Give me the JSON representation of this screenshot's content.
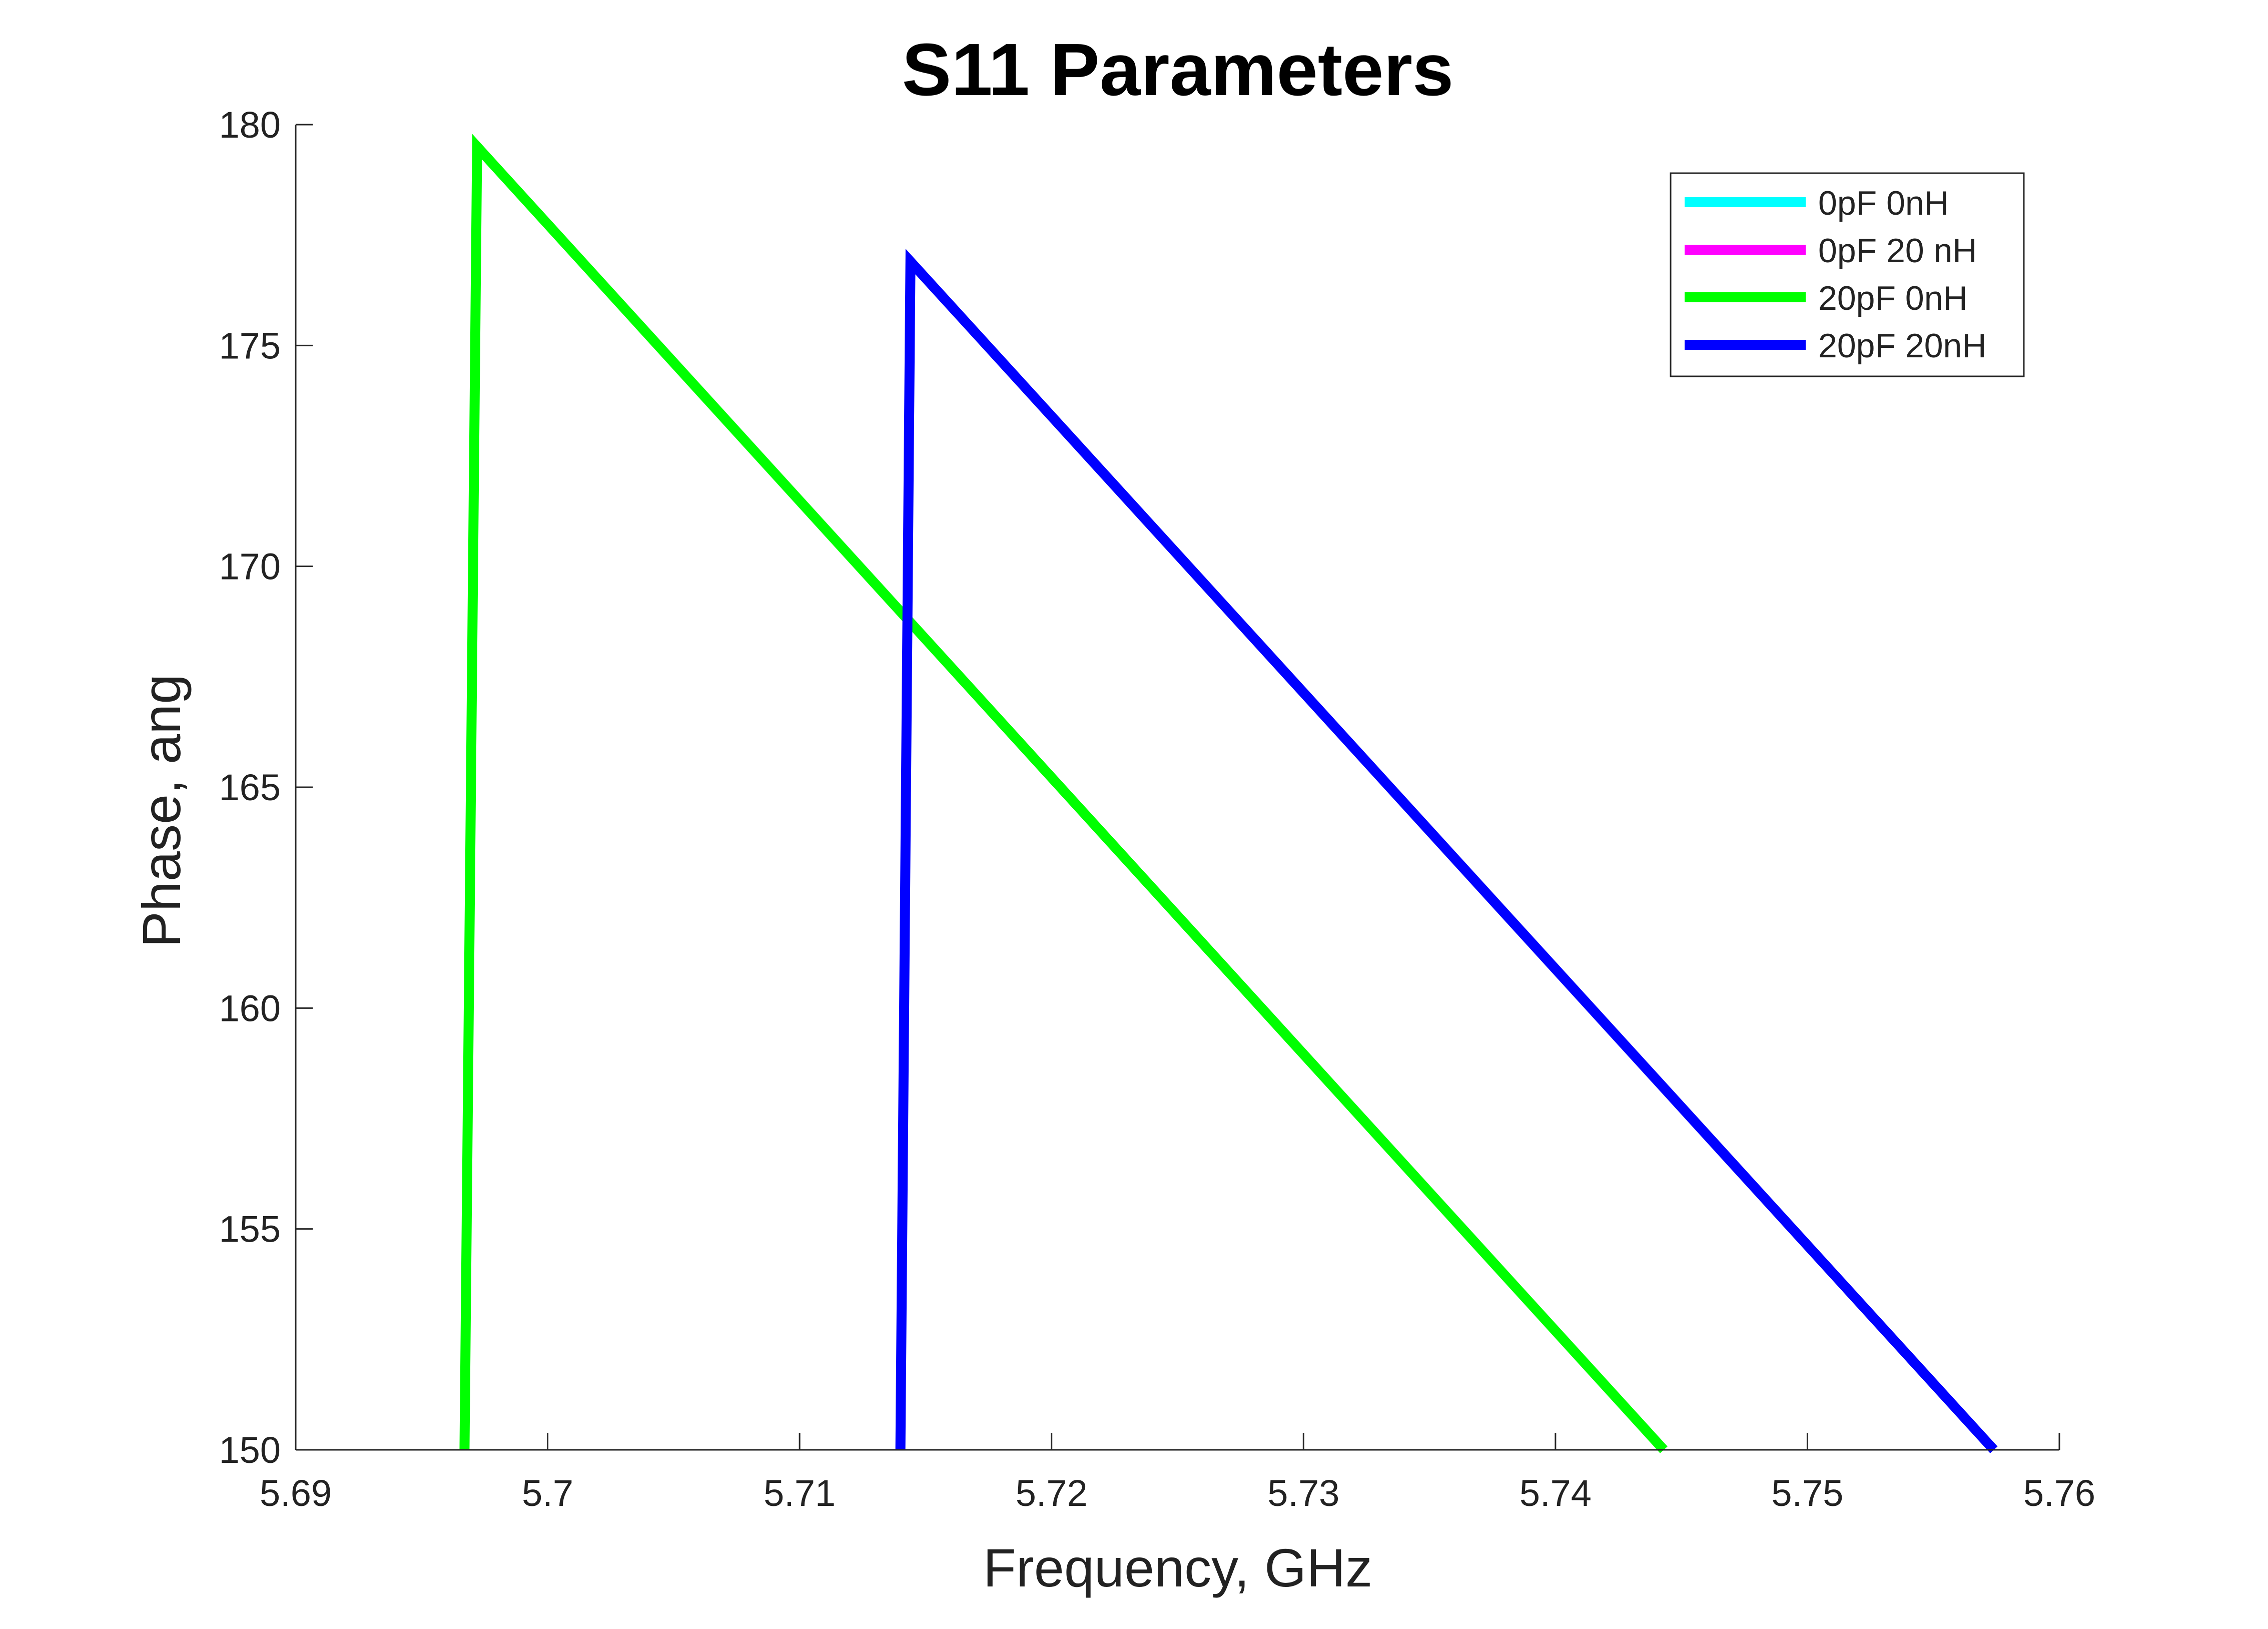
{
  "chart_data": {
    "type": "line",
    "title": "S11 Parameters",
    "xlabel": "Frequency, GHz",
    "ylabel": "Phase, ang",
    "xlim": [
      5.69,
      5.76
    ],
    "ylim": [
      150,
      180
    ],
    "xticks": [
      5.69,
      5.7,
      5.71,
      5.72,
      5.73,
      5.74,
      5.75,
      5.76
    ],
    "xtick_labels": [
      "5.69",
      "5.7",
      "5.71",
      "5.72",
      "5.73",
      "5.74",
      "5.75",
      "5.76"
    ],
    "yticks": [
      150,
      155,
      160,
      165,
      170,
      175,
      180
    ],
    "ytick_labels": [
      "150",
      "155",
      "160",
      "165",
      "170",
      "175",
      "180"
    ],
    "grid": false,
    "legend_position": "top-right",
    "series": [
      {
        "name": "0pF 0nH",
        "color": "#00FFFF",
        "x": [],
        "y": []
      },
      {
        "name": "0pF 20 nH",
        "color": "#FF00FF",
        "x": [],
        "y": []
      },
      {
        "name": "20pF 0nH",
        "color": "#00FF00",
        "x": [
          5.6967,
          5.6972,
          5.7443
        ],
        "y": [
          150,
          179.5,
          150
        ]
      },
      {
        "name": "20pF 20nH",
        "color": "#0000FF",
        "x": [
          5.714,
          5.7144,
          5.7574
        ],
        "y": [
          150,
          176.9,
          150
        ]
      }
    ]
  }
}
